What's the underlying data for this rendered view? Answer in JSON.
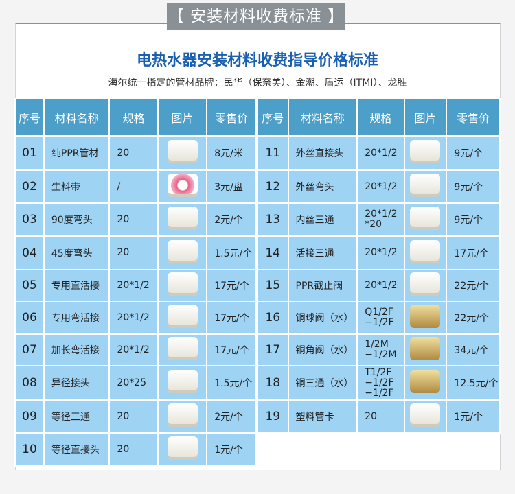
{
  "banner": "【 安装材料收费标准 】",
  "title": "电热水器安装材料收费指导价格标准",
  "subtitle": "海尔统一指定的管材品牌：民华（保奈美）、金潮、盾运（ITMI）、龙胜",
  "headers": [
    "序号",
    "材料名称",
    "规格",
    "图片",
    "零售价"
  ],
  "colors": {
    "header": "#4b9fc9",
    "cell": "#9fd3f4",
    "title": "#1a5fb0"
  },
  "left": [
    {
      "no": "01",
      "name": "纯PPR管材",
      "spec": "20",
      "price": "8元/米",
      "icon": "pipe-icon"
    },
    {
      "no": "02",
      "name": "生料带",
      "spec": "/",
      "price": "3元/盘",
      "icon": "tape-icon"
    },
    {
      "no": "03",
      "name": "90度弯头",
      "spec": "20",
      "price": "2元/个",
      "icon": "elbow-90-icon"
    },
    {
      "no": "04",
      "name": "45度弯头",
      "spec": "20",
      "price": "1.5元/个",
      "icon": "elbow-45-icon"
    },
    {
      "no": "05",
      "name": "专用直活接",
      "spec": "20*1/2",
      "price": "17元/个",
      "icon": "union-icon"
    },
    {
      "no": "06",
      "name": "专用弯活接",
      "spec": "20*1/2",
      "price": "17元/个",
      "icon": "elbow-union-icon"
    },
    {
      "no": "07",
      "name": "加长弯活接",
      "spec": "20*1/2",
      "price": "17元/个",
      "icon": "long-elbow-union-icon"
    },
    {
      "no": "08",
      "name": "异径接头",
      "spec": "20*25",
      "price": "1.5元/个",
      "icon": "reducer-icon"
    },
    {
      "no": "09",
      "name": "等径三通",
      "spec": "20",
      "price": "2元/个",
      "icon": "tee-icon"
    },
    {
      "no": "10",
      "name": "等径直接头",
      "spec": "20",
      "price": "1元/个",
      "icon": "coupling-icon"
    }
  ],
  "right": [
    {
      "no": "11",
      "name": "外丝直接头",
      "spec": "20*1/2",
      "price": "9元/个",
      "icon": "male-coupling-icon"
    },
    {
      "no": "12",
      "name": "外丝弯头",
      "spec": "20*1/2",
      "price": "9元/个",
      "icon": "male-elbow-icon"
    },
    {
      "no": "13",
      "name": "内丝三通",
      "spec": "20*1/2\n*20",
      "price": "9元/个",
      "icon": "female-tee-icon"
    },
    {
      "no": "14",
      "name": "活接三通",
      "spec": "20*1/2",
      "price": "17元/个",
      "icon": "union-tee-icon"
    },
    {
      "no": "15",
      "name": "PPR截止阀",
      "spec": "20*1/2",
      "price": "22元/个",
      "icon": "stop-valve-icon"
    },
    {
      "no": "16",
      "name": "铜球阀（水）",
      "spec": "Q1/2F\n−1/2F",
      "price": "22元/个",
      "icon": "ball-valve-icon"
    },
    {
      "no": "17",
      "name": "铜角阀（水）",
      "spec": "1/2M\n−1/2M",
      "price": "34元/个",
      "icon": "angle-valve-icon"
    },
    {
      "no": "18",
      "name": "铜三通（水）",
      "spec": "T1/2F\n−1/2F\n−1/2F",
      "price": "12.5元/个",
      "icon": "brass-tee-icon"
    },
    {
      "no": "19",
      "name": "塑料管卡",
      "spec": "20",
      "price": "1元/个",
      "icon": "pipe-clip-icon"
    }
  ]
}
